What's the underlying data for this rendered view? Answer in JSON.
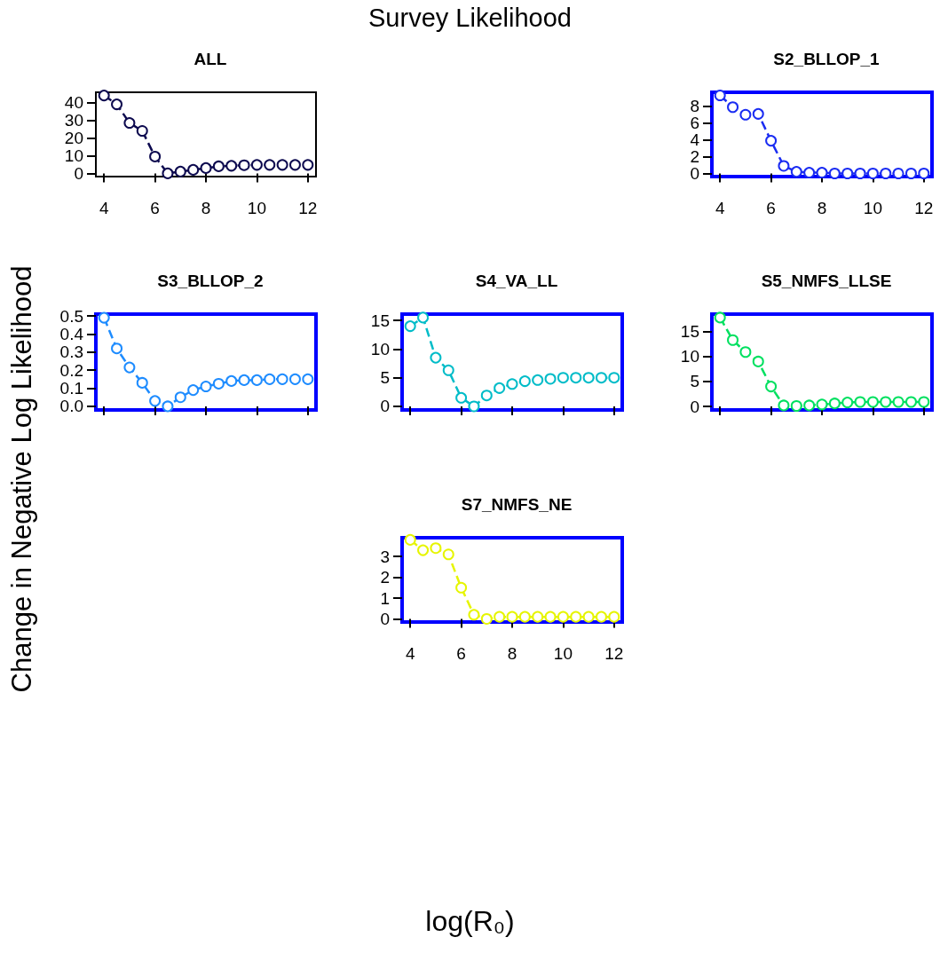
{
  "chart_data": [
    {
      "type": "other",
      "title": "Survey Likelihood",
      "xlabel": "log(R₀)",
      "ylabel": "Change in Negative Log Likelihood"
    },
    {
      "type": "line",
      "title": "ALL",
      "x": [
        4,
        4.5,
        5,
        5.5,
        6,
        6.5,
        7,
        7.5,
        8,
        8.5,
        9,
        9.5,
        10,
        10.5,
        11,
        11.5,
        12
      ],
      "marker": "circle",
      "line_style": "dashed",
      "xlim": [
        3.68,
        12.32
      ],
      "xticks": [
        4,
        6,
        8,
        10,
        12
      ],
      "ylim": [
        -1.8,
        45.8
      ],
      "yticks": [
        0,
        10,
        20,
        30,
        40
      ],
      "series": [
        {
          "color": "#0d0a4f",
          "values": [
            44,
            39,
            28.5,
            24,
            9.5,
            0,
            1,
            2,
            3,
            4,
            4.3,
            4.6,
            4.8,
            4.8,
            4.8,
            4.8,
            4.8
          ]
        }
      ]
    },
    {
      "type": "line",
      "title": "S2_BLLOP_1",
      "x": [
        4,
        4.5,
        5,
        5.5,
        6,
        6.5,
        7,
        7.5,
        8,
        8.5,
        9,
        9.5,
        10,
        10.5,
        11,
        11.5,
        12
      ],
      "marker": "circle",
      "line_style": "dashed",
      "xlim": [
        3.68,
        12.32
      ],
      "xticks": [
        4,
        6,
        8,
        10,
        12
      ],
      "ylim": [
        -0.37,
        9.67
      ],
      "yticks": [
        0,
        2,
        4,
        6,
        8
      ],
      "series": [
        {
          "color": "#1a2cf2",
          "values": [
            9.3,
            7.9,
            7.0,
            7.1,
            3.9,
            0.9,
            0.2,
            0.1,
            0.1,
            0,
            0,
            0,
            0,
            0,
            0,
            0,
            0
          ]
        }
      ]
    },
    {
      "type": "line",
      "title": "S3_BLLOP_2",
      "x": [
        4,
        4.5,
        5,
        5.5,
        6,
        6.5,
        7,
        7.5,
        8,
        8.5,
        9,
        9.5,
        10,
        10.5,
        11,
        11.5,
        12
      ],
      "marker": "circle",
      "line_style": "dashed",
      "xlim": [
        3.68,
        12.32
      ],
      "xticks": [
        4,
        6,
        8,
        10,
        12
      ],
      "ylim": [
        -0.02,
        0.51
      ],
      "yticks": [
        {
          "value": 0,
          "label": "0.0"
        },
        0.1,
        0.2,
        0.3,
        0.4,
        0.5
      ],
      "tick_labels": "y",
      "series": [
        {
          "color": "#1e8cff",
          "values": [
            0.49,
            0.32,
            0.215,
            0.13,
            0.03,
            0,
            0.05,
            0.09,
            0.11,
            0.125,
            0.14,
            0.145,
            0.145,
            0.15,
            0.15,
            0.15,
            0.15
          ]
        }
      ]
    },
    {
      "type": "line",
      "title": "S4_VA_LL",
      "x": [
        4,
        4.5,
        5,
        5.5,
        6,
        6.5,
        7,
        7.5,
        8,
        8.5,
        9,
        9.5,
        10,
        10.5,
        11,
        11.5,
        12
      ],
      "marker": "circle",
      "line_style": "dashed",
      "xlim": [
        3.68,
        12.32
      ],
      "xticks": [
        4,
        6,
        8,
        10,
        12
      ],
      "ylim": [
        -0.62,
        16.1
      ],
      "yticks": [
        0,
        5,
        10,
        15
      ],
      "tick_labels": "y",
      "series": [
        {
          "color": "#00bcc8",
          "values": [
            14,
            15.5,
            8.5,
            6.3,
            1.5,
            0,
            1.9,
            3.2,
            3.9,
            4.4,
            4.6,
            4.8,
            5,
            5,
            5,
            5,
            5
          ]
        }
      ]
    },
    {
      "type": "line",
      "title": "S5_NMFS_LLSE",
      "x": [
        4,
        4.5,
        5,
        5.5,
        6,
        6.5,
        7,
        7.5,
        8,
        8.5,
        9,
        9.5,
        10,
        10.5,
        11,
        11.5,
        12
      ],
      "marker": "circle",
      "line_style": "dashed",
      "xlim": [
        3.68,
        12.32
      ],
      "xticks": [
        4,
        6,
        8,
        10,
        12
      ],
      "ylim": [
        -0.7,
        18.5
      ],
      "yticks": [
        0,
        5,
        10,
        15
      ],
      "tick_labels": "y",
      "series": [
        {
          "color": "#00e060",
          "values": [
            17.8,
            13.3,
            10.9,
            9,
            4,
            0.2,
            0.1,
            0.2,
            0.4,
            0.6,
            0.8,
            0.9,
            0.9,
            0.9,
            0.9,
            0.9,
            0.9
          ]
        }
      ]
    },
    {
      "type": "line",
      "title": "S7_NMFS_NE",
      "x": [
        4,
        4.5,
        5,
        5.5,
        6,
        6.5,
        7,
        7.5,
        8,
        8.5,
        9,
        9.5,
        10,
        10.5,
        11,
        11.5,
        12
      ],
      "marker": "circle",
      "line_style": "dashed",
      "xlim": [
        3.68,
        12.32
      ],
      "xticks": [
        4,
        6,
        8,
        10,
        12
      ],
      "ylim": [
        -0.15,
        3.9
      ],
      "yticks": [
        0,
        1,
        2,
        3
      ],
      "series": [
        {
          "color": "#e6f500",
          "values": [
            3.8,
            3.3,
            3.4,
            3.1,
            1.5,
            0.2,
            0,
            0.1,
            0.1,
            0.1,
            0.1,
            0.1,
            0.1,
            0.1,
            0.1,
            0.1,
            0.1
          ]
        }
      ]
    }
  ]
}
